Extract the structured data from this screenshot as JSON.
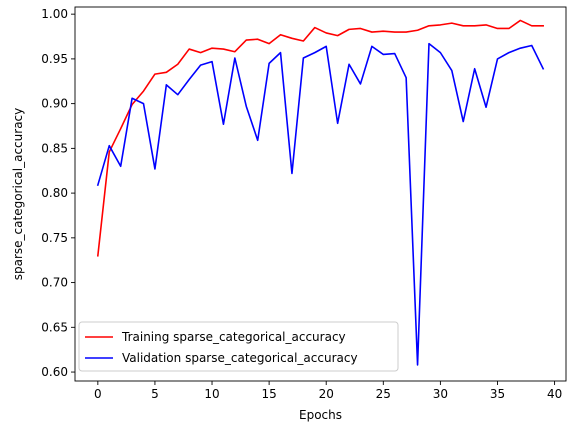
{
  "chart_data": {
    "type": "line",
    "title": "",
    "xlabel": "Epochs",
    "ylabel": "sparse_categorical_accuracy",
    "xlim": [
      -2.0,
      41.0
    ],
    "ylim": [
      0.59,
      1.008
    ],
    "xticks": [
      0,
      5,
      10,
      15,
      20,
      25,
      30,
      35,
      40
    ],
    "yticks": [
      0.6,
      0.65,
      0.7,
      0.75,
      0.8,
      0.85,
      0.9,
      0.95,
      1.0
    ],
    "xtick_labels": [
      "0",
      "5",
      "10",
      "15",
      "20",
      "25",
      "30",
      "35",
      "40"
    ],
    "ytick_labels": [
      "0.60",
      "0.65",
      "0.70",
      "0.75",
      "0.80",
      "0.85",
      "0.90",
      "0.95",
      "1.00"
    ],
    "legend_position": "lower-left",
    "grid": false,
    "x": [
      0,
      1,
      2,
      3,
      4,
      5,
      6,
      7,
      8,
      9,
      10,
      11,
      12,
      13,
      14,
      15,
      16,
      17,
      18,
      19,
      20,
      21,
      22,
      23,
      24,
      25,
      26,
      27,
      28,
      29,
      30,
      31,
      32,
      33,
      34,
      35,
      36,
      37,
      38,
      39
    ],
    "series": [
      {
        "name": "Training sparse_categorical_accuracy",
        "color": "#ff0000",
        "values": [
          0.73,
          0.846,
          0.872,
          0.899,
          0.914,
          0.933,
          0.935,
          0.944,
          0.961,
          0.957,
          0.962,
          0.961,
          0.958,
          0.971,
          0.972,
          0.967,
          0.977,
          0.973,
          0.97,
          0.985,
          0.979,
          0.976,
          0.983,
          0.984,
          0.98,
          0.981,
          0.98,
          0.98,
          0.982,
          0.987,
          0.988,
          0.99,
          0.987,
          0.987,
          0.988,
          0.984,
          0.984,
          0.993,
          0.987,
          0.987
        ]
      },
      {
        "name": "Validation sparse_categorical_accuracy",
        "color": "#0000ff",
        "values": [
          0.809,
          0.853,
          0.83,
          0.906,
          0.9,
          0.827,
          0.921,
          0.91,
          0.927,
          0.943,
          0.947,
          0.877,
          0.951,
          0.897,
          0.859,
          0.945,
          0.957,
          0.822,
          0.951,
          0.957,
          0.964,
          0.878,
          0.944,
          0.922,
          0.964,
          0.955,
          0.956,
          0.929,
          0.608,
          0.967,
          0.957,
          0.937,
          0.88,
          0.939,
          0.896,
          0.95,
          0.957,
          0.962,
          0.965,
          0.939
        ]
      }
    ]
  }
}
